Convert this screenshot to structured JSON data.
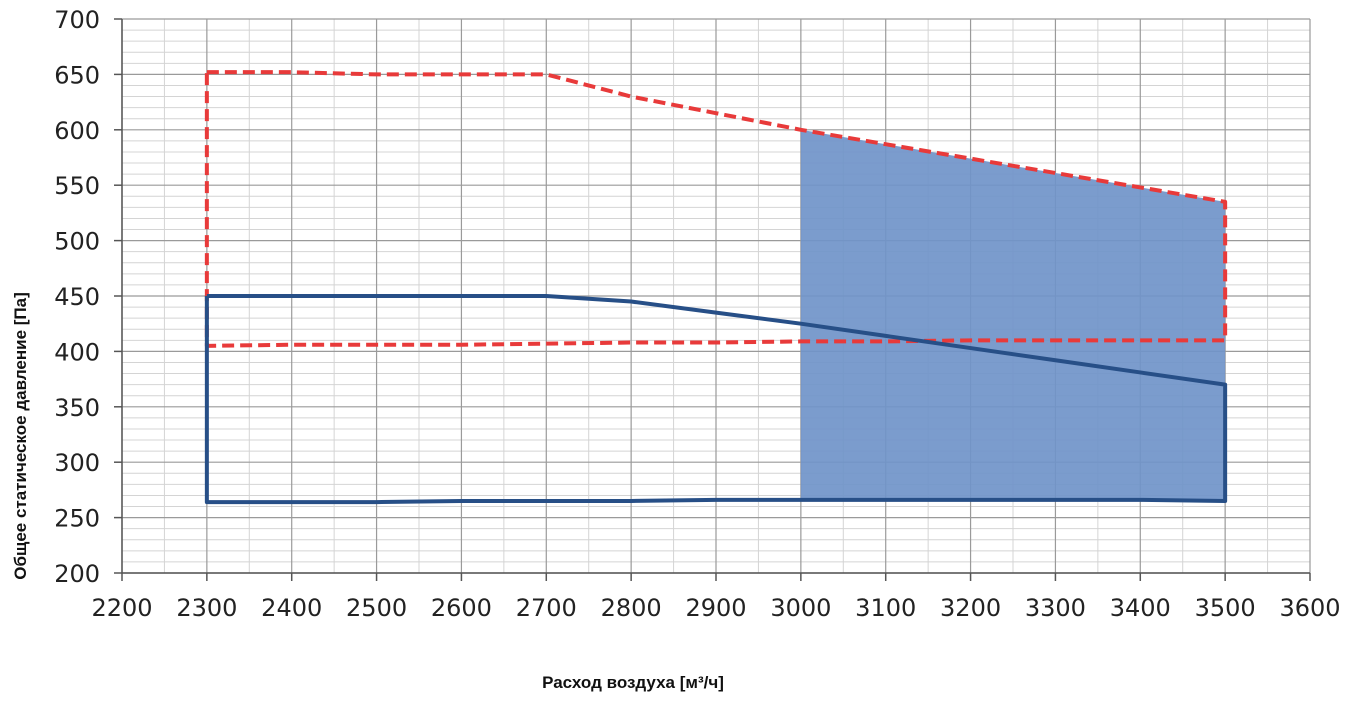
{
  "chart_data": {
    "type": "line",
    "xlabel": "Расход воздуха [м³/ч]",
    "ylabel": "Общее статическое давление [Па]",
    "xlim": [
      2200,
      3600
    ],
    "ylim": [
      200,
      700
    ],
    "x_ticks": [
      2200,
      2300,
      2400,
      2500,
      2600,
      2700,
      2800,
      2900,
      3000,
      3100,
      3200,
      3300,
      3400,
      3500,
      3600
    ],
    "y_ticks": [
      200,
      250,
      300,
      350,
      400,
      450,
      500,
      550,
      600,
      650,
      700
    ],
    "x_minor_step": 50,
    "y_minor_step": 10,
    "grid": true,
    "legend": "none",
    "series": [
      {
        "style": "dashed",
        "color": "#e83a3a",
        "points": [
          [
            2300,
            652
          ],
          [
            2400,
            652
          ],
          [
            2500,
            650
          ],
          [
            2600,
            650
          ],
          [
            2700,
            650
          ],
          [
            2800,
            630
          ],
          [
            2900,
            615
          ],
          [
            3000,
            600
          ],
          [
            3100,
            587
          ],
          [
            3200,
            574
          ],
          [
            3300,
            561
          ],
          [
            3400,
            548
          ],
          [
            3500,
            535
          ],
          [
            3500,
            410
          ],
          [
            3400,
            410
          ],
          [
            3300,
            410
          ],
          [
            3200,
            410
          ],
          [
            3100,
            409
          ],
          [
            3000,
            409
          ],
          [
            2900,
            408
          ],
          [
            2800,
            408
          ],
          [
            2700,
            407
          ],
          [
            2600,
            406
          ],
          [
            2500,
            406
          ],
          [
            2400,
            406
          ],
          [
            2300,
            405
          ],
          [
            2300,
            652
          ]
        ]
      },
      {
        "style": "solid",
        "color": "#274f87",
        "points": [
          [
            2300,
            450
          ],
          [
            2400,
            450
          ],
          [
            2500,
            450
          ],
          [
            2600,
            450
          ],
          [
            2700,
            450
          ],
          [
            2800,
            445
          ],
          [
            2900,
            435
          ],
          [
            3000,
            425
          ],
          [
            3100,
            414
          ],
          [
            3200,
            403
          ],
          [
            3300,
            392
          ],
          [
            3400,
            381
          ],
          [
            3500,
            370
          ],
          [
            3500,
            265
          ],
          [
            3400,
            266
          ],
          [
            3300,
            266
          ],
          [
            3200,
            266
          ],
          [
            3100,
            266
          ],
          [
            3000,
            266
          ],
          [
            2900,
            266
          ],
          [
            2800,
            265
          ],
          [
            2700,
            265
          ],
          [
            2600,
            265
          ],
          [
            2500,
            264
          ],
          [
            2400,
            264
          ],
          [
            2300,
            264
          ],
          [
            2300,
            450
          ]
        ]
      }
    ],
    "area": {
      "color": "#7094c9",
      "top": [
        [
          3000,
          600
        ],
        [
          3100,
          587
        ],
        [
          3200,
          574
        ],
        [
          3300,
          561
        ],
        [
          3400,
          548
        ],
        [
          3500,
          535
        ]
      ],
      "bottom_value": 266
    }
  }
}
